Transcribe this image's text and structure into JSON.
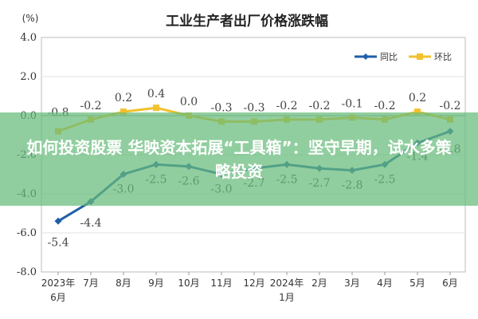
{
  "chart_data": {
    "type": "line",
    "title": "工业生产者出厂价格涨跌幅",
    "unit_label": "(%)",
    "categories": [
      [
        "2023年",
        "6月"
      ],
      [
        "7月"
      ],
      [
        "8月"
      ],
      [
        "9月"
      ],
      [
        "10月"
      ],
      [
        "11月"
      ],
      [
        "12月"
      ],
      [
        "2024年",
        "1月"
      ],
      [
        "2月"
      ],
      [
        "3月"
      ],
      [
        "4月"
      ],
      [
        "5月"
      ],
      [
        "6月"
      ]
    ],
    "yticks": [
      "4.0",
      "2.0",
      "0.0",
      "-2.0",
      "-4.0",
      "-6.0",
      "-8.0"
    ],
    "ylim": [
      -8,
      4
    ],
    "legend_position": "top-right",
    "series": [
      {
        "name": "同比",
        "color": "#1f5fa8",
        "values": [
          -5.4,
          -4.4,
          -3.0,
          -2.5,
          -2.6,
          -3.0,
          -2.7,
          -2.5,
          -2.7,
          -2.8,
          -2.5,
          -1.4,
          -0.8
        ],
        "labels": [
          "-5.4",
          "-4.4",
          "-3.0",
          "-2.5",
          "-2.6",
          "-3.0",
          "-2.7",
          "-2.5",
          "-2.7",
          "-2.8",
          "-2.5",
          "-1.4",
          "-0.8"
        ]
      },
      {
        "name": "环比",
        "color": "#f2c12e",
        "values": [
          -0.8,
          -0.2,
          0.2,
          0.4,
          0.0,
          -0.3,
          -0.3,
          -0.2,
          -0.2,
          -0.1,
          -0.2,
          0.2,
          -0.2
        ],
        "labels": [
          "-0.8",
          "-0.2",
          "0.2",
          "0.4",
          "0.0",
          "-0.3",
          "-0.3",
          "-0.2",
          "-0.2",
          "-0.1",
          "-0.2",
          "0.2",
          "-0.2"
        ]
      }
    ]
  },
  "overlay": {
    "text": "如何投资股票 华映资本拓展“工具箱”：坚守早期，试水多策略投资"
  }
}
